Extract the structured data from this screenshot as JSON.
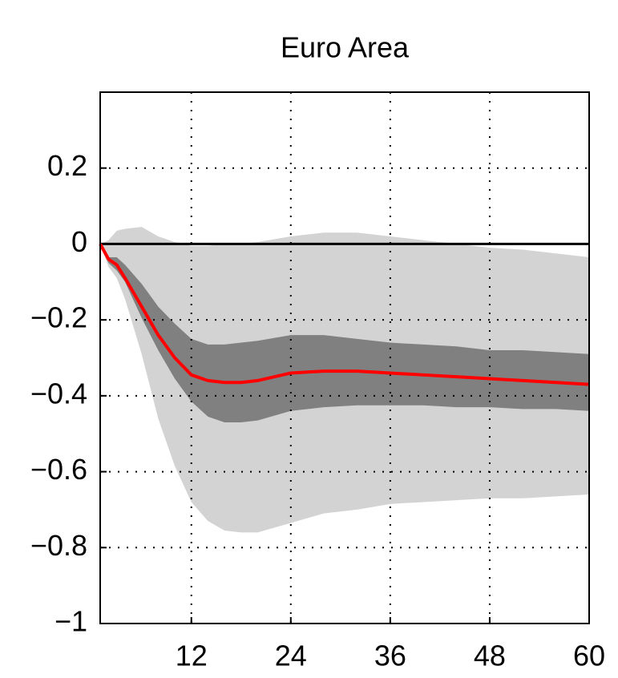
{
  "chart_data": {
    "type": "line",
    "title": "Euro Area",
    "x": [
      1,
      2,
      3,
      4,
      6,
      8,
      10,
      12,
      14,
      16,
      18,
      20,
      24,
      28,
      32,
      36,
      40,
      44,
      48,
      52,
      56,
      60
    ],
    "bands": [
      {
        "color": "#d3d3d3",
        "upper": [
          0,
          0.01,
          0.035,
          0.04,
          0.045,
          0.02,
          0.005,
          -0.005,
          -0.005,
          0,
          0,
          0.005,
          0.02,
          0.03,
          0.03,
          0.02,
          0.01,
          0,
          -0.01,
          -0.015,
          -0.025,
          -0.035
        ],
        "lower": [
          0,
          -0.06,
          -0.09,
          -0.145,
          -0.29,
          -0.46,
          -0.585,
          -0.68,
          -0.73,
          -0.755,
          -0.76,
          -0.76,
          -0.735,
          -0.71,
          -0.7,
          -0.685,
          -0.68,
          -0.675,
          -0.67,
          -0.67,
          -0.665,
          -0.66
        ]
      },
      {
        "color": "#808080",
        "upper": [
          0,
          -0.035,
          -0.035,
          -0.055,
          -0.105,
          -0.165,
          -0.21,
          -0.25,
          -0.265,
          -0.265,
          -0.26,
          -0.255,
          -0.24,
          -0.24,
          -0.25,
          -0.26,
          -0.265,
          -0.27,
          -0.28,
          -0.28,
          -0.285,
          -0.29
        ],
        "lower": [
          0,
          -0.05,
          -0.07,
          -0.1,
          -0.195,
          -0.28,
          -0.355,
          -0.415,
          -0.455,
          -0.47,
          -0.47,
          -0.465,
          -0.44,
          -0.43,
          -0.425,
          -0.425,
          -0.425,
          -0.43,
          -0.43,
          -0.435,
          -0.435,
          -0.44
        ]
      }
    ],
    "series": [
      {
        "color": "#ff0000",
        "values": [
          0,
          -0.04,
          -0.055,
          -0.09,
          -0.165,
          -0.24,
          -0.3,
          -0.345,
          -0.36,
          -0.365,
          -0.365,
          -0.36,
          -0.34,
          -0.335,
          -0.335,
          -0.34,
          -0.345,
          -0.35,
          -0.355,
          -0.36,
          -0.365,
          -0.37
        ]
      }
    ],
    "xlim": [
      1,
      60
    ],
    "xticks": [
      12,
      24,
      36,
      48,
      60
    ],
    "ylim": [
      -1,
      0.4
    ],
    "yticks": [
      {
        "value": -1,
        "label": "−1"
      },
      {
        "value": -0.8,
        "label": "−0.8"
      },
      {
        "value": -0.6,
        "label": "−0.6"
      },
      {
        "value": -0.4,
        "label": "−0.4"
      },
      {
        "value": -0.2,
        "label": "−0.2"
      },
      0,
      0.2
    ],
    "grid": true
  }
}
